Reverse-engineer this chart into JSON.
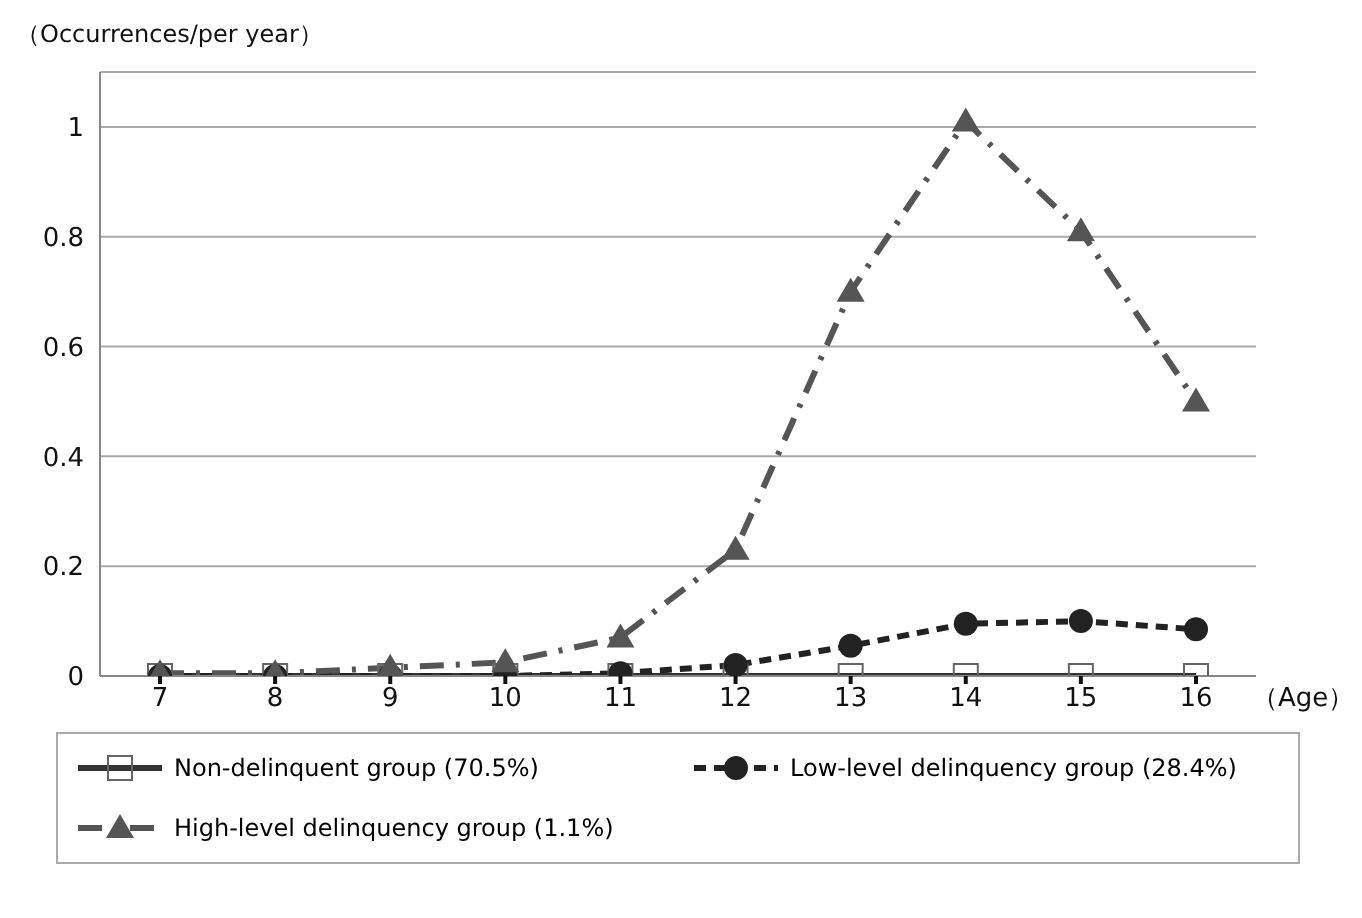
{
  "chart_data": {
    "type": "line",
    "ylabel": "（Occurrences/per year）",
    "xlabel": "（Age）",
    "categories": [
      "7",
      "8",
      "9",
      "10",
      "11",
      "12",
      "13",
      "14",
      "15",
      "16"
    ],
    "series": [
      {
        "name": "Non-delinquent group (70.5%)",
        "color": "#333333",
        "marker": "square",
        "line_style": "solid",
        "values": [
          0,
          0,
          0,
          0,
          0,
          0,
          0,
          0,
          0,
          0
        ]
      },
      {
        "name": "Low-level delinquency group (28.4%)",
        "color": "#222222",
        "marker": "circle",
        "line_style": "dashed",
        "values": [
          0,
          0,
          0,
          0,
          0.005,
          0.02,
          0.055,
          0.095,
          0.1,
          0.085
        ]
      },
      {
        "name": "High-level delinquency group (1.1%)",
        "color": "#555555",
        "marker": "triangle",
        "line_style": "dashdot",
        "values": [
          0.005,
          0.005,
          0.015,
          0.025,
          0.07,
          0.23,
          0.7,
          1.01,
          0.81,
          0.5
        ]
      }
    ],
    "ylim": [
      0,
      1.1
    ],
    "yticks": [
      0,
      0.2,
      0.4,
      0.6,
      0.8,
      1
    ],
    "grid": "y",
    "legend": "bottom"
  }
}
